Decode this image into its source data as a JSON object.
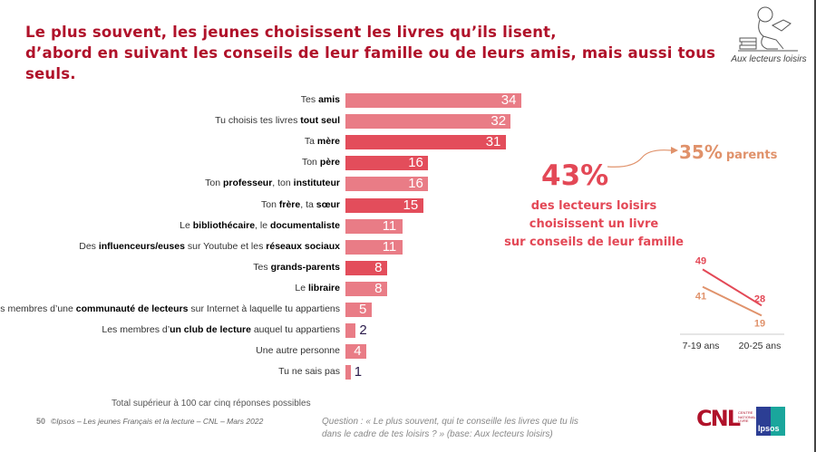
{
  "title": {
    "line1": "Le plus souvent, les jeunes choisissent les livres qu’ils lisent,",
    "line2": "d’abord en suivant les conseils de leur famille ou de leurs amis, mais aussi tous seuls."
  },
  "badge": {
    "icon": "reader-with-books-icon",
    "caption": "Aux lecteurs loisirs"
  },
  "colors": {
    "bar_light": "#e97c86",
    "bar_dark": "#e34d5b",
    "accent_red": "#e34856",
    "accent_orange": "#e0926b",
    "title": "#b0122a"
  },
  "chart_data": [
    {
      "type": "bar",
      "orientation": "horizontal",
      "title": "",
      "categories": [
        {
          "pre": "Tes ",
          "bold": "amis",
          "post": ""
        },
        {
          "pre": "Tu choisis tes livres ",
          "bold": "tout seul",
          "post": ""
        },
        {
          "pre": "Ta ",
          "bold": "mère",
          "post": ""
        },
        {
          "pre": "Ton ",
          "bold": "père",
          "post": ""
        },
        {
          "pre": "Ton ",
          "bold": "professeur",
          "post": ", ton ",
          "bold2": "instituteur"
        },
        {
          "pre": "Ton ",
          "bold": "frère",
          "post": ", ta ",
          "bold2": "sœur"
        },
        {
          "pre": "Le ",
          "bold": "bibliothécaire",
          "post": ", le ",
          "bold2": "documentaliste"
        },
        {
          "pre": "Des ",
          "bold": "influenceurs/euses",
          "post": " sur Youtube et les ",
          "bold2": "réseaux sociaux"
        },
        {
          "pre": "Tes ",
          "bold": "grands-parents",
          "post": ""
        },
        {
          "pre": "Le ",
          "bold": "libraire",
          "post": ""
        },
        {
          "pre": "Les membres d’une ",
          "bold": "communauté de lecteurs",
          "post": " sur Internet à laquelle tu appartiens"
        },
        {
          "pre": "Les membres d’",
          "bold": "un club de lecture",
          "post": " auquel tu appartiens"
        },
        {
          "pre": "Une autre personne",
          "bold": "",
          "post": ""
        },
        {
          "pre": "Tu ne sais pas",
          "bold": "",
          "post": ""
        }
      ],
      "values": [
        34,
        32,
        31,
        16,
        16,
        15,
        11,
        11,
        8,
        8,
        5,
        2,
        4,
        1
      ],
      "family": [
        false,
        false,
        true,
        true,
        false,
        true,
        false,
        false,
        true,
        false,
        false,
        false,
        false,
        false
      ],
      "xlim": [
        0,
        34
      ],
      "unit": "%",
      "grid": false
    },
    {
      "type": "line",
      "categories": [
        "7-19 ans",
        "20-25 ans"
      ],
      "series": [
        {
          "name": "famille",
          "values": [
            49,
            28
          ],
          "color": "#e34856"
        },
        {
          "name": "parents",
          "values": [
            41,
            19
          ],
          "color": "#e0926b"
        }
      ],
      "ylim": [
        15,
        55
      ],
      "grid": false
    }
  ],
  "callout": {
    "main_value": "43%",
    "main_text_1": "des lecteurs loisirs",
    "main_text_2": "choisissent un livre",
    "main_text_3": "sur conseils de leur famille",
    "sub_value": "35%",
    "sub_label": "parents"
  },
  "note": "Total supérieur à 100 car cinq réponses possibles",
  "footer": {
    "page": "50",
    "source": "©Ipsos – Les jeunes Français et la lecture – CNL – Mars 2022"
  },
  "question": {
    "line1": "Question : « Le plus souvent, qui te conseille les livres que tu lis",
    "line2": "dans le cadre de tes loisirs ? » (base: Aux lecteurs loisirs)"
  },
  "logos": {
    "cnl": "CNL",
    "cnl_sub": "CENTRE NATIONAL DU LIVRE",
    "ipsos": "Ipsos"
  }
}
